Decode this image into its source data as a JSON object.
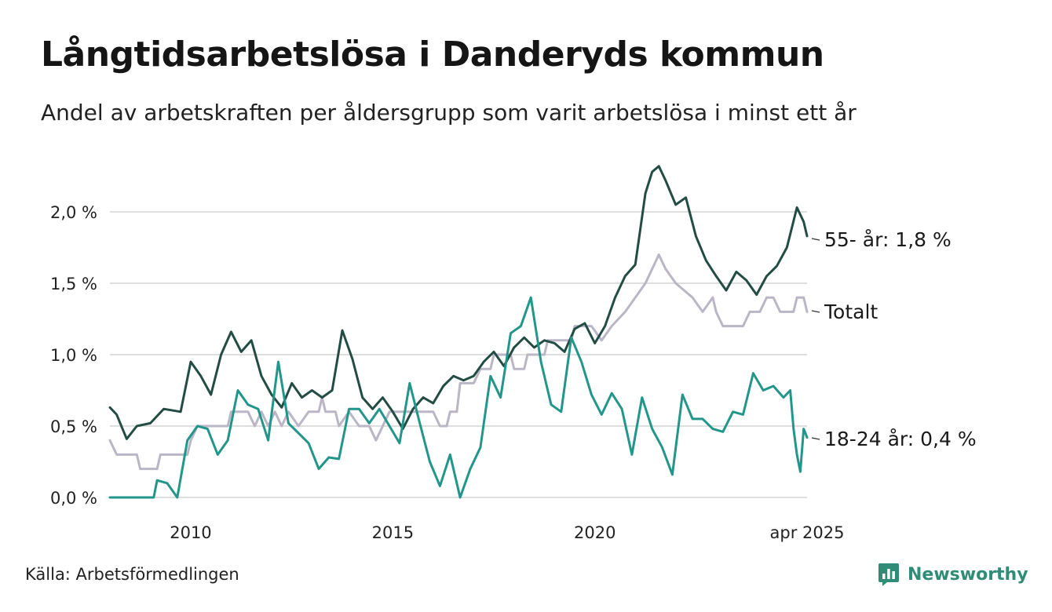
{
  "title": "Långtidsarbetslösa i Danderyds kommun",
  "subtitle": "Andel av arbetskraften per åldersgrupp som varit arbetslösa i minst ett år",
  "source": "Källa: Arbetsförmedlingen",
  "brand": {
    "name": "Newsworthy",
    "color": "#2f8c77",
    "icon": "bar-chart-logo-icon"
  },
  "chart_data": {
    "type": "line",
    "x_ticks": [
      "2010",
      "2015",
      "2020",
      "apr 2025"
    ],
    "y_ticks": [
      "0,0 %",
      "0,5 %",
      "1,0 %",
      "1,5 %",
      "2,0 %"
    ],
    "ylim": [
      0,
      2.5
    ],
    "xlim": [
      "2008-01",
      "2025-04"
    ],
    "grid": "horizontal",
    "legend": "direct labels at line ends (right)",
    "series": [
      {
        "name": "Totalt",
        "label": "Totalt",
        "color": "#bab6c5",
        "points": [
          [
            "2008-01",
            0.4
          ],
          [
            "2008-03",
            0.3
          ],
          [
            "2008-09",
            0.3
          ],
          [
            "2008-10",
            0.2
          ],
          [
            "2009-03",
            0.2
          ],
          [
            "2009-04",
            0.3
          ],
          [
            "2009-12",
            0.3
          ],
          [
            "2010-01",
            0.4
          ],
          [
            "2010-03",
            0.5
          ],
          [
            "2010-12",
            0.5
          ],
          [
            "2011-01",
            0.6
          ],
          [
            "2011-06",
            0.6
          ],
          [
            "2011-08",
            0.5
          ],
          [
            "2011-10",
            0.6
          ],
          [
            "2011-12",
            0.5
          ],
          [
            "2012-02",
            0.6
          ],
          [
            "2012-04",
            0.5
          ],
          [
            "2012-06",
            0.6
          ],
          [
            "2012-09",
            0.5
          ],
          [
            "2012-12",
            0.6
          ],
          [
            "2013-03",
            0.6
          ],
          [
            "2013-04",
            0.7
          ],
          [
            "2013-05",
            0.6
          ],
          [
            "2013-08",
            0.6
          ],
          [
            "2013-09",
            0.5
          ],
          [
            "2013-12",
            0.6
          ],
          [
            "2014-03",
            0.5
          ],
          [
            "2014-06",
            0.5
          ],
          [
            "2014-08",
            0.4
          ],
          [
            "2014-10",
            0.5
          ],
          [
            "2014-12",
            0.6
          ],
          [
            "2015-06",
            0.6
          ],
          [
            "2015-10",
            0.6
          ],
          [
            "2016-01",
            0.6
          ],
          [
            "2016-03",
            0.5
          ],
          [
            "2016-05",
            0.5
          ],
          [
            "2016-06",
            0.6
          ],
          [
            "2016-08",
            0.6
          ],
          [
            "2016-09",
            0.8
          ],
          [
            "2017-01",
            0.8
          ],
          [
            "2017-03",
            0.9
          ],
          [
            "2017-06",
            0.9
          ],
          [
            "2017-07",
            1.0
          ],
          [
            "2017-12",
            1.0
          ],
          [
            "2018-01",
            0.9
          ],
          [
            "2018-04",
            0.9
          ],
          [
            "2018-05",
            1.0
          ],
          [
            "2018-10",
            1.0
          ],
          [
            "2018-11",
            1.1
          ],
          [
            "2019-06",
            1.1
          ],
          [
            "2019-07",
            1.2
          ],
          [
            "2019-12",
            1.2
          ],
          [
            "2020-03",
            1.1
          ],
          [
            "2020-06",
            1.2
          ],
          [
            "2020-10",
            1.3
          ],
          [
            "2021-01",
            1.4
          ],
          [
            "2021-04",
            1.5
          ],
          [
            "2021-06",
            1.6
          ],
          [
            "2021-08",
            1.7
          ],
          [
            "2021-10",
            1.6
          ],
          [
            "2022-01",
            1.5
          ],
          [
            "2022-06",
            1.4
          ],
          [
            "2022-09",
            1.3
          ],
          [
            "2022-12",
            1.4
          ],
          [
            "2023-01",
            1.3
          ],
          [
            "2023-03",
            1.2
          ],
          [
            "2023-09",
            1.2
          ],
          [
            "2023-11",
            1.3
          ],
          [
            "2024-02",
            1.3
          ],
          [
            "2024-04",
            1.4
          ],
          [
            "2024-06",
            1.4
          ],
          [
            "2024-08",
            1.3
          ],
          [
            "2024-12",
            1.3
          ],
          [
            "2025-01",
            1.4
          ],
          [
            "2025-03",
            1.4
          ],
          [
            "2025-04",
            1.3
          ]
        ]
      },
      {
        "name": "55- år",
        "label": "55- år: 1,8 %",
        "color": "#234d44",
        "points": [
          [
            "2008-01",
            0.63
          ],
          [
            "2008-03",
            0.58
          ],
          [
            "2008-06",
            0.41
          ],
          [
            "2008-09",
            0.5
          ],
          [
            "2009-01",
            0.52
          ],
          [
            "2009-05",
            0.62
          ],
          [
            "2009-10",
            0.6
          ],
          [
            "2010-01",
            0.95
          ],
          [
            "2010-04",
            0.85
          ],
          [
            "2010-07",
            0.72
          ],
          [
            "2010-10",
            1.0
          ],
          [
            "2011-01",
            1.16
          ],
          [
            "2011-04",
            1.02
          ],
          [
            "2011-07",
            1.1
          ],
          [
            "2011-10",
            0.85
          ],
          [
            "2012-01",
            0.72
          ],
          [
            "2012-04",
            0.63
          ],
          [
            "2012-07",
            0.8
          ],
          [
            "2012-10",
            0.7
          ],
          [
            "2013-01",
            0.75
          ],
          [
            "2013-04",
            0.7
          ],
          [
            "2013-07",
            0.75
          ],
          [
            "2013-10",
            1.17
          ],
          [
            "2014-01",
            0.97
          ],
          [
            "2014-04",
            0.7
          ],
          [
            "2014-07",
            0.62
          ],
          [
            "2014-10",
            0.7
          ],
          [
            "2015-01",
            0.6
          ],
          [
            "2015-04",
            0.48
          ],
          [
            "2015-07",
            0.62
          ],
          [
            "2015-10",
            0.7
          ],
          [
            "2016-01",
            0.66
          ],
          [
            "2016-04",
            0.78
          ],
          [
            "2016-07",
            0.85
          ],
          [
            "2016-10",
            0.82
          ],
          [
            "2017-01",
            0.85
          ],
          [
            "2017-04",
            0.95
          ],
          [
            "2017-07",
            1.02
          ],
          [
            "2017-10",
            0.92
          ],
          [
            "2018-01",
            1.05
          ],
          [
            "2018-04",
            1.12
          ],
          [
            "2018-07",
            1.05
          ],
          [
            "2018-10",
            1.1
          ],
          [
            "2019-01",
            1.08
          ],
          [
            "2019-04",
            1.02
          ],
          [
            "2019-07",
            1.18
          ],
          [
            "2019-10",
            1.22
          ],
          [
            "2020-01",
            1.08
          ],
          [
            "2020-04",
            1.2
          ],
          [
            "2020-07",
            1.4
          ],
          [
            "2020-10",
            1.55
          ],
          [
            "2021-01",
            1.63
          ],
          [
            "2021-04",
            2.13
          ],
          [
            "2021-06",
            2.28
          ],
          [
            "2021-08",
            2.32
          ],
          [
            "2021-10",
            2.22
          ],
          [
            "2022-01",
            2.05
          ],
          [
            "2022-04",
            2.1
          ],
          [
            "2022-07",
            1.83
          ],
          [
            "2022-10",
            1.66
          ],
          [
            "2023-01",
            1.55
          ],
          [
            "2023-04",
            1.45
          ],
          [
            "2023-07",
            1.58
          ],
          [
            "2023-10",
            1.52
          ],
          [
            "2024-01",
            1.42
          ],
          [
            "2024-04",
            1.55
          ],
          [
            "2024-07",
            1.62
          ],
          [
            "2024-10",
            1.75
          ],
          [
            "2025-01",
            2.03
          ],
          [
            "2025-03",
            1.93
          ],
          [
            "2025-04",
            1.83
          ]
        ]
      },
      {
        "name": "18-24 år",
        "label": "18-24 år: 0,4 %",
        "color": "#22968a",
        "points": [
          [
            "2008-01",
            0.0
          ],
          [
            "2009-02",
            0.0
          ],
          [
            "2009-03",
            0.12
          ],
          [
            "2009-06",
            0.1
          ],
          [
            "2009-09",
            0.0
          ],
          [
            "2009-12",
            0.4
          ],
          [
            "2010-03",
            0.5
          ],
          [
            "2010-06",
            0.48
          ],
          [
            "2010-09",
            0.3
          ],
          [
            "2010-12",
            0.4
          ],
          [
            "2011-03",
            0.75
          ],
          [
            "2011-06",
            0.65
          ],
          [
            "2011-09",
            0.62
          ],
          [
            "2011-12",
            0.4
          ],
          [
            "2012-03",
            0.95
          ],
          [
            "2012-06",
            0.52
          ],
          [
            "2012-09",
            0.45
          ],
          [
            "2012-12",
            0.38
          ],
          [
            "2013-03",
            0.2
          ],
          [
            "2013-06",
            0.28
          ],
          [
            "2013-09",
            0.27
          ],
          [
            "2013-12",
            0.62
          ],
          [
            "2014-03",
            0.62
          ],
          [
            "2014-06",
            0.52
          ],
          [
            "2014-09",
            0.62
          ],
          [
            "2014-12",
            0.5
          ],
          [
            "2015-03",
            0.38
          ],
          [
            "2015-06",
            0.8
          ],
          [
            "2015-09",
            0.52
          ],
          [
            "2015-12",
            0.25
          ],
          [
            "2016-03",
            0.08
          ],
          [
            "2016-06",
            0.3
          ],
          [
            "2016-09",
            0.0
          ],
          [
            "2016-12",
            0.2
          ],
          [
            "2017-03",
            0.35
          ],
          [
            "2017-06",
            0.85
          ],
          [
            "2017-09",
            0.7
          ],
          [
            "2017-12",
            1.15
          ],
          [
            "2018-03",
            1.2
          ],
          [
            "2018-06",
            1.4
          ],
          [
            "2018-09",
            0.95
          ],
          [
            "2018-12",
            0.65
          ],
          [
            "2019-03",
            0.6
          ],
          [
            "2019-06",
            1.12
          ],
          [
            "2019-09",
            0.95
          ],
          [
            "2019-12",
            0.72
          ],
          [
            "2020-03",
            0.58
          ],
          [
            "2020-06",
            0.73
          ],
          [
            "2020-09",
            0.62
          ],
          [
            "2020-12",
            0.3
          ],
          [
            "2021-03",
            0.7
          ],
          [
            "2021-06",
            0.48
          ],
          [
            "2021-09",
            0.35
          ],
          [
            "2021-12",
            0.16
          ],
          [
            "2022-03",
            0.72
          ],
          [
            "2022-06",
            0.55
          ],
          [
            "2022-09",
            0.55
          ],
          [
            "2022-12",
            0.48
          ],
          [
            "2023-03",
            0.46
          ],
          [
            "2023-06",
            0.6
          ],
          [
            "2023-09",
            0.58
          ],
          [
            "2023-12",
            0.87
          ],
          [
            "2024-03",
            0.75
          ],
          [
            "2024-06",
            0.78
          ],
          [
            "2024-09",
            0.7
          ],
          [
            "2024-11",
            0.75
          ],
          [
            "2024-12",
            0.48
          ],
          [
            "2025-01",
            0.3
          ],
          [
            "2025-02",
            0.18
          ],
          [
            "2025-03",
            0.48
          ],
          [
            "2025-04",
            0.42
          ]
        ]
      }
    ]
  }
}
